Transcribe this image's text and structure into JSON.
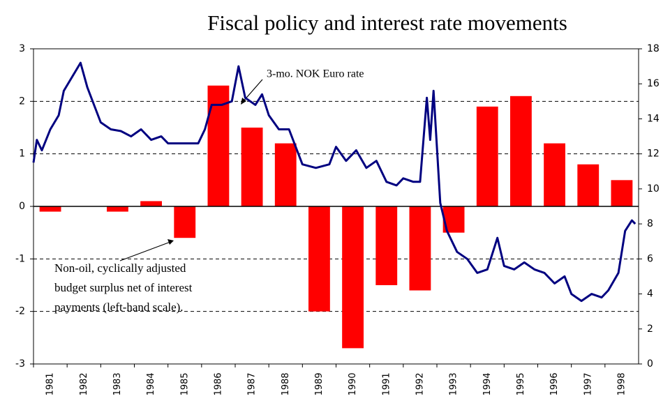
{
  "chart_data": {
    "type": "bar",
    "title": "Fiscal policy and interest rate movements",
    "categories": [
      "1981",
      "1982",
      "1983",
      "1984",
      "1985",
      "1986",
      "1987",
      "1988",
      "1989",
      "1990",
      "1991",
      "1992",
      "1993",
      "1994",
      "1995",
      "1996",
      "1997",
      "1998"
    ],
    "values": [
      -0.1,
      0,
      -0.1,
      0.1,
      -0.6,
      2.3,
      1.5,
      1.2,
      -2.0,
      -2.7,
      -1.5,
      -1.6,
      -0.5,
      1.9,
      2.1,
      1.2,
      0.8,
      0.5
    ],
    "color": "#ff0000",
    "ylim": [
      -3,
      3
    ],
    "yticks": [
      -3,
      -2,
      -1,
      0,
      1,
      2,
      3
    ],
    "y2lim": [
      0,
      18
    ],
    "y2ticks": [
      0,
      2,
      4,
      6,
      8,
      10,
      12,
      14,
      16,
      18
    ],
    "xlim": [
      1981,
      1999
    ],
    "grid": true,
    "series": [
      {
        "name": "3-mo. NOK Euro rate",
        "type": "line",
        "axis": "y2",
        "color": "#000080",
        "x": [
          1981.0,
          1981.1,
          1981.25,
          1981.5,
          1981.75,
          1981.9,
          1982.4,
          1982.6,
          1982.8,
          1983.0,
          1983.3,
          1983.6,
          1983.9,
          1984.2,
          1984.5,
          1984.8,
          1985.0,
          1985.5,
          1985.9,
          1986.1,
          1986.3,
          1986.6,
          1986.9,
          1987.1,
          1987.3,
          1987.6,
          1987.8,
          1988.0,
          1988.3,
          1988.6,
          1988.8,
          1989.0,
          1989.4,
          1989.8,
          1990.0,
          1990.3,
          1990.6,
          1990.9,
          1991.2,
          1991.5,
          1991.8,
          1992.0,
          1992.3,
          1992.5,
          1992.7,
          1992.8,
          1992.9,
          1993.0,
          1993.1,
          1993.3,
          1993.6,
          1993.9,
          1994.2,
          1994.5,
          1994.8,
          1995.0,
          1995.3,
          1995.6,
          1995.9,
          1996.2,
          1996.5,
          1996.8,
          1997.0,
          1997.3,
          1997.6,
          1997.9,
          1998.1,
          1998.4,
          1998.6,
          1998.8,
          1998.9
        ],
        "values": [
          11.5,
          12.8,
          12.2,
          13.4,
          14.2,
          15.6,
          17.2,
          15.8,
          14.8,
          13.8,
          13.4,
          13.3,
          13.0,
          13.4,
          12.8,
          13.0,
          12.6,
          12.6,
          12.6,
          13.4,
          14.8,
          14.8,
          15.0,
          17.0,
          15.2,
          14.8,
          15.4,
          14.2,
          13.4,
          13.4,
          12.4,
          11.4,
          11.2,
          11.4,
          12.4,
          11.6,
          12.2,
          11.2,
          11.6,
          10.4,
          10.2,
          10.6,
          10.4,
          10.4,
          15.2,
          12.8,
          15.6,
          12.4,
          9.2,
          7.6,
          6.4,
          6.0,
          5.2,
          5.4,
          7.2,
          5.6,
          5.4,
          5.8,
          5.4,
          5.2,
          4.6,
          5.0,
          4.0,
          3.6,
          4.0,
          3.8,
          4.2,
          5.2,
          7.6,
          8.2,
          8.0
        ]
      }
    ],
    "annotations": [
      "Non-oil, cyclically adjusted",
      "budget surplus net of interest",
      "payments (left-hand scale)."
    ]
  }
}
